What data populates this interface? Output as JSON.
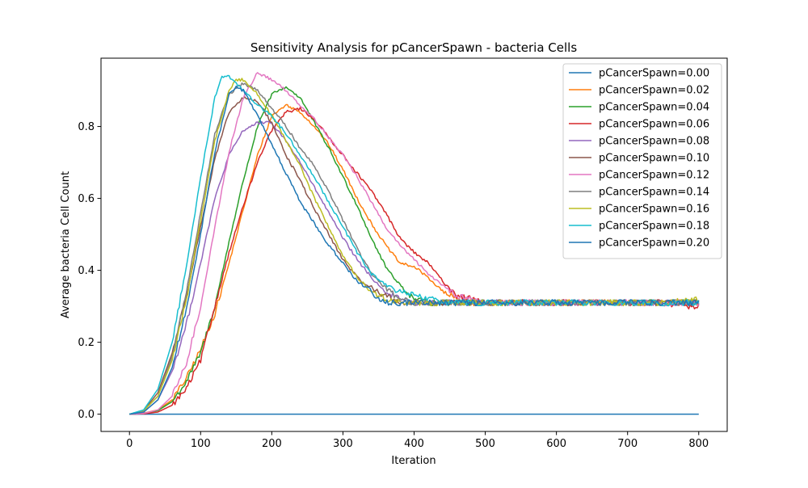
{
  "chart_data": {
    "type": "line",
    "title": "Sensitivity Analysis for pCancerSpawn - bacteria Cells",
    "xlabel": "Iteration",
    "ylabel": "Average bacteria Cell Count",
    "xlim": [
      -40,
      840
    ],
    "ylim": [
      -0.048,
      0.99
    ],
    "xticks": [
      0,
      100,
      200,
      300,
      400,
      500,
      600,
      700,
      800
    ],
    "xtick_labels": [
      "0",
      "100",
      "200",
      "300",
      "400",
      "500",
      "600",
      "700",
      "800"
    ],
    "yticks": [
      0.0,
      0.2,
      0.4,
      0.6,
      0.8
    ],
    "ytick_labels": [
      "0.0",
      "0.2",
      "0.4",
      "0.6",
      "0.8"
    ],
    "grid": false,
    "legend_position": "top-right",
    "series": [
      {
        "name": "pCancerSpawn=0.00",
        "color": "#1f77b4",
        "x": [
          0,
          100,
          200,
          300,
          400,
          500,
          600,
          700,
          800
        ],
        "y": [
          0,
          0,
          0,
          0,
          0,
          0,
          0,
          0,
          0
        ]
      },
      {
        "name": "pCancerSpawn=0.02",
        "color": "#ff7f0e",
        "x": [
          0,
          20,
          40,
          60,
          80,
          100,
          120,
          140,
          160,
          180,
          200,
          220,
          240,
          260,
          280,
          300,
          320,
          340,
          360,
          380,
          400,
          420,
          440,
          460,
          480,
          500,
          550,
          600,
          650,
          700,
          750,
          800
        ],
        "y": [
          0,
          0.003,
          0.012,
          0.04,
          0.1,
          0.18,
          0.28,
          0.42,
          0.57,
          0.72,
          0.83,
          0.86,
          0.84,
          0.8,
          0.75,
          0.68,
          0.6,
          0.53,
          0.47,
          0.42,
          0.41,
          0.38,
          0.34,
          0.32,
          0.31,
          0.31,
          0.31,
          0.31,
          0.31,
          0.31,
          0.31,
          0.31
        ]
      },
      {
        "name": "pCancerSpawn=0.04",
        "color": "#2ca02c",
        "x": [
          0,
          20,
          40,
          60,
          80,
          100,
          120,
          140,
          160,
          180,
          200,
          220,
          240,
          260,
          280,
          300,
          320,
          340,
          360,
          380,
          400,
          420,
          440,
          460,
          500,
          550,
          600,
          650,
          700,
          750,
          800
        ],
        "y": [
          0,
          0.002,
          0.01,
          0.035,
          0.09,
          0.17,
          0.3,
          0.48,
          0.65,
          0.8,
          0.89,
          0.91,
          0.88,
          0.81,
          0.74,
          0.66,
          0.58,
          0.49,
          0.41,
          0.36,
          0.32,
          0.31,
          0.31,
          0.31,
          0.31,
          0.31,
          0.31,
          0.31,
          0.31,
          0.31,
          0.31
        ]
      },
      {
        "name": "pCancerSpawn=0.06",
        "color": "#d62728",
        "x": [
          0,
          20,
          40,
          60,
          80,
          100,
          120,
          140,
          160,
          180,
          200,
          220,
          240,
          260,
          280,
          300,
          320,
          340,
          360,
          380,
          400,
          420,
          440,
          460,
          480,
          500,
          550,
          600,
          650,
          700,
          750,
          790,
          800
        ],
        "y": [
          0,
          0.001,
          0.006,
          0.025,
          0.07,
          0.15,
          0.3,
          0.45,
          0.58,
          0.7,
          0.79,
          0.84,
          0.85,
          0.82,
          0.77,
          0.72,
          0.67,
          0.62,
          0.56,
          0.49,
          0.45,
          0.42,
          0.37,
          0.33,
          0.32,
          0.31,
          0.31,
          0.31,
          0.31,
          0.31,
          0.31,
          0.3,
          0.3
        ]
      },
      {
        "name": "pCancerSpawn=0.08",
        "color": "#9467bd",
        "x": [
          0,
          20,
          40,
          60,
          80,
          100,
          120,
          140,
          160,
          180,
          200,
          220,
          240,
          260,
          280,
          300,
          320,
          340,
          360,
          380,
          400,
          420,
          450,
          500,
          550,
          600,
          650,
          700,
          750,
          800
        ],
        "y": [
          0,
          0.006,
          0.04,
          0.12,
          0.25,
          0.42,
          0.6,
          0.72,
          0.79,
          0.81,
          0.81,
          0.76,
          0.7,
          0.63,
          0.56,
          0.49,
          0.43,
          0.38,
          0.34,
          0.32,
          0.31,
          0.31,
          0.31,
          0.31,
          0.31,
          0.31,
          0.31,
          0.31,
          0.31,
          0.31
        ]
      },
      {
        "name": "pCancerSpawn=0.10",
        "color": "#8c564b",
        "x": [
          0,
          20,
          40,
          60,
          80,
          100,
          120,
          140,
          160,
          180,
          200,
          220,
          240,
          260,
          280,
          300,
          320,
          340,
          360,
          380,
          400,
          420,
          450,
          500,
          550,
          600,
          650,
          700,
          750,
          800
        ],
        "y": [
          0,
          0.01,
          0.06,
          0.17,
          0.33,
          0.52,
          0.71,
          0.84,
          0.88,
          0.87,
          0.81,
          0.72,
          0.65,
          0.57,
          0.5,
          0.43,
          0.38,
          0.35,
          0.33,
          0.31,
          0.31,
          0.31,
          0.31,
          0.31,
          0.31,
          0.31,
          0.31,
          0.31,
          0.31,
          0.31
        ]
      },
      {
        "name": "pCancerSpawn=0.12",
        "color": "#e377c2",
        "x": [
          0,
          20,
          40,
          60,
          80,
          100,
          120,
          140,
          160,
          180,
          200,
          220,
          240,
          260,
          280,
          300,
          320,
          340,
          360,
          380,
          400,
          420,
          440,
          460,
          480,
          500,
          550,
          600,
          650,
          700,
          750,
          800
        ],
        "y": [
          0,
          0.002,
          0.012,
          0.05,
          0.14,
          0.3,
          0.52,
          0.73,
          0.88,
          0.95,
          0.93,
          0.9,
          0.86,
          0.82,
          0.77,
          0.72,
          0.66,
          0.59,
          0.52,
          0.47,
          0.43,
          0.39,
          0.36,
          0.33,
          0.32,
          0.31,
          0.31,
          0.31,
          0.31,
          0.31,
          0.31,
          0.31
        ]
      },
      {
        "name": "pCancerSpawn=0.14",
        "color": "#7f7f7f",
        "x": [
          0,
          20,
          40,
          60,
          80,
          100,
          120,
          140,
          160,
          180,
          200,
          220,
          240,
          260,
          280,
          300,
          320,
          340,
          360,
          380,
          400,
          420,
          450,
          500,
          550,
          600,
          650,
          700,
          750,
          800
        ],
        "y": [
          0,
          0.01,
          0.05,
          0.16,
          0.34,
          0.56,
          0.78,
          0.89,
          0.92,
          0.9,
          0.85,
          0.8,
          0.74,
          0.69,
          0.62,
          0.54,
          0.46,
          0.39,
          0.35,
          0.32,
          0.31,
          0.31,
          0.31,
          0.31,
          0.31,
          0.31,
          0.31,
          0.31,
          0.31,
          0.31
        ]
      },
      {
        "name": "pCancerSpawn=0.16",
        "color": "#bcbd22",
        "x": [
          0,
          20,
          40,
          60,
          80,
          100,
          120,
          140,
          150,
          160,
          180,
          200,
          220,
          240,
          260,
          280,
          300,
          320,
          340,
          360,
          380,
          400,
          420,
          450,
          500,
          550,
          600,
          650,
          700,
          750,
          800
        ],
        "y": [
          0,
          0.01,
          0.05,
          0.15,
          0.32,
          0.54,
          0.76,
          0.9,
          0.93,
          0.93,
          0.89,
          0.83,
          0.76,
          0.69,
          0.6,
          0.52,
          0.44,
          0.38,
          0.34,
          0.32,
          0.31,
          0.31,
          0.31,
          0.31,
          0.31,
          0.31,
          0.31,
          0.31,
          0.31,
          0.31,
          0.32
        ]
      },
      {
        "name": "pCancerSpawn=0.18",
        "color": "#17becf",
        "x": [
          0,
          20,
          40,
          60,
          80,
          100,
          120,
          130,
          140,
          160,
          180,
          200,
          220,
          240,
          260,
          280,
          300,
          320,
          340,
          360,
          380,
          400,
          420,
          450,
          500,
          550,
          600,
          650,
          700,
          750,
          800
        ],
        "y": [
          0,
          0.012,
          0.07,
          0.2,
          0.41,
          0.66,
          0.88,
          0.94,
          0.94,
          0.9,
          0.86,
          0.83,
          0.78,
          0.72,
          0.66,
          0.59,
          0.52,
          0.45,
          0.39,
          0.36,
          0.34,
          0.33,
          0.32,
          0.31,
          0.31,
          0.31,
          0.31,
          0.31,
          0.31,
          0.31,
          0.31
        ]
      },
      {
        "name": "pCancerSpawn=0.20",
        "color": "#1f77b4",
        "x": [
          0,
          20,
          40,
          60,
          80,
          100,
          120,
          140,
          150,
          160,
          180,
          200,
          220,
          240,
          260,
          280,
          300,
          320,
          340,
          360,
          380,
          400,
          420,
          450,
          500,
          550,
          600,
          650,
          700,
          750,
          800
        ],
        "y": [
          0,
          0.006,
          0.04,
          0.13,
          0.29,
          0.5,
          0.73,
          0.89,
          0.91,
          0.9,
          0.83,
          0.75,
          0.67,
          0.59,
          0.53,
          0.47,
          0.42,
          0.37,
          0.34,
          0.31,
          0.31,
          0.31,
          0.31,
          0.31,
          0.31,
          0.31,
          0.31,
          0.31,
          0.31,
          0.31,
          0.31
        ]
      }
    ]
  }
}
